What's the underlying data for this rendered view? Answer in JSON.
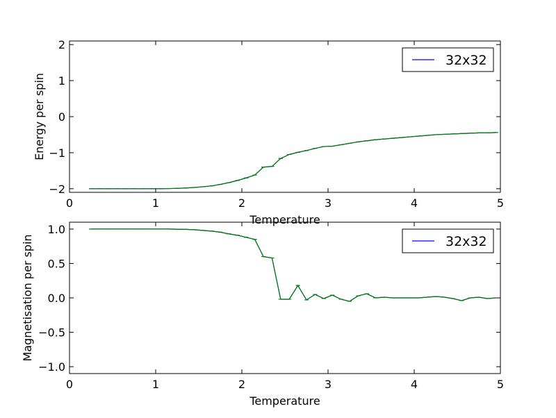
{
  "chart_data": [
    {
      "type": "line",
      "xlabel": "Temperature",
      "ylabel": "Energy per spin",
      "xlim": [
        0,
        5
      ],
      "ylim": [
        -2.1,
        2.1
      ],
      "xticks": [
        "0",
        "1",
        "2",
        "3",
        "4",
        "5"
      ],
      "xtick_values": [
        0,
        1,
        2,
        3,
        4,
        5
      ],
      "yticks": [
        "−2",
        "−1",
        "0",
        "1",
        "2"
      ],
      "ytick_values": [
        -2,
        -1,
        0,
        1,
        2
      ],
      "legend": {
        "position": "top-right",
        "entries": [
          {
            "label": "32x32",
            "color": "#0000ff"
          }
        ]
      },
      "series": [
        {
          "name": "32x32",
          "color": "#0000ff",
          "x": [
            0.25,
            0.35,
            0.45,
            0.55,
            0.65,
            0.75,
            0.85,
            0.95,
            1.05,
            1.15,
            1.25,
            1.35,
            1.45,
            1.55,
            1.65,
            1.75,
            1.85,
            1.95,
            2.05,
            2.15,
            2.25,
            2.35,
            2.45,
            2.55,
            2.65,
            2.75,
            2.85,
            2.95,
            3.05,
            3.15,
            3.25,
            3.35,
            3.45,
            3.55,
            3.65,
            3.75,
            3.85,
            3.95,
            4.05,
            4.15,
            4.25,
            4.35,
            4.45,
            4.55,
            4.65,
            4.75,
            4.85,
            4.95
          ],
          "y": [
            -2.0,
            -2.0,
            -2.0,
            -2.0,
            -2.0,
            -2.0,
            -2.0,
            -2.0,
            -2.0,
            -1.995,
            -1.99,
            -1.98,
            -1.965,
            -1.945,
            -1.92,
            -1.88,
            -1.83,
            -1.77,
            -1.7,
            -1.62,
            -1.4,
            -1.38,
            -1.16,
            -1.05,
            -0.99,
            -0.94,
            -0.88,
            -0.83,
            -0.82,
            -0.78,
            -0.74,
            -0.7,
            -0.67,
            -0.64,
            -0.62,
            -0.6,
            -0.58,
            -0.56,
            -0.54,
            -0.52,
            -0.5,
            -0.49,
            -0.48,
            -0.47,
            -0.46,
            -0.45,
            -0.45,
            -0.44
          ]
        },
        {
          "color": "#007f00",
          "x": [
            0.25,
            0.35,
            0.45,
            0.55,
            0.65,
            0.75,
            0.85,
            0.95,
            1.05,
            1.15,
            1.25,
            1.35,
            1.45,
            1.55,
            1.65,
            1.75,
            1.85,
            1.95,
            2.05,
            2.15,
            2.25,
            2.35,
            2.45,
            2.55,
            2.65,
            2.75,
            2.85,
            2.95,
            3.05,
            3.15,
            3.25,
            3.35,
            3.45,
            3.55,
            3.65,
            3.75,
            3.85,
            3.95,
            4.05,
            4.15,
            4.25,
            4.35,
            4.45,
            4.55,
            4.65,
            4.75,
            4.85,
            4.95
          ],
          "y": [
            -2.0,
            -2.0,
            -2.0,
            -2.0,
            -2.0,
            -2.0,
            -2.0,
            -2.0,
            -2.0,
            -1.995,
            -1.99,
            -1.98,
            -1.965,
            -1.945,
            -1.92,
            -1.88,
            -1.83,
            -1.77,
            -1.7,
            -1.62,
            -1.4,
            -1.38,
            -1.16,
            -1.05,
            -0.99,
            -0.94,
            -0.88,
            -0.83,
            -0.82,
            -0.78,
            -0.74,
            -0.7,
            -0.67,
            -0.64,
            -0.62,
            -0.6,
            -0.58,
            -0.56,
            -0.54,
            -0.52,
            -0.5,
            -0.49,
            -0.48,
            -0.47,
            -0.46,
            -0.45,
            -0.45,
            -0.44
          ]
        }
      ]
    },
    {
      "type": "line",
      "xlabel": "Temperature",
      "ylabel": "Magnetisation per spin",
      "xlim": [
        0,
        5
      ],
      "ylim": [
        -1.1,
        1.1
      ],
      "xticks": [
        "0",
        "1",
        "2",
        "3",
        "4",
        "5"
      ],
      "xtick_values": [
        0,
        1,
        2,
        3,
        4,
        5
      ],
      "yticks": [
        "−1.0",
        "−0.5",
        "0.0",
        "0.5",
        "1.0"
      ],
      "ytick_values": [
        -1.0,
        -0.5,
        0.0,
        0.5,
        1.0
      ],
      "legend": {
        "position": "top-right",
        "entries": [
          {
            "label": "32x32",
            "color": "#0000ff"
          }
        ]
      },
      "series": [
        {
          "name": "32x32",
          "color": "#0000ff",
          "x": [
            0.25,
            0.35,
            0.45,
            0.55,
            0.65,
            0.75,
            0.85,
            0.95,
            1.05,
            1.15,
            1.25,
            1.35,
            1.45,
            1.55,
            1.65,
            1.75,
            1.85,
            1.95,
            2.05,
            2.15,
            2.25,
            2.35,
            2.45,
            2.55,
            2.65,
            2.75,
            2.85,
            2.95,
            3.05,
            3.15,
            3.25,
            3.35,
            3.45,
            3.55,
            3.65,
            3.75,
            3.85,
            3.95,
            4.05,
            4.15,
            4.25,
            4.35,
            4.45,
            4.55,
            4.65,
            4.75,
            4.85,
            4.95
          ],
          "y": [
            1.0,
            1.0,
            1.0,
            1.0,
            1.0,
            1.0,
            1.0,
            1.0,
            1.0,
            1.0,
            0.998,
            0.995,
            0.99,
            0.98,
            0.97,
            0.955,
            0.93,
            0.91,
            0.88,
            0.85,
            0.6,
            0.58,
            -0.02,
            -0.02,
            0.18,
            -0.03,
            0.05,
            -0.01,
            0.04,
            -0.02,
            -0.05,
            0.03,
            0.06,
            0.0,
            0.01,
            0.0,
            0.0,
            0.0,
            0.0,
            0.01,
            0.02,
            0.01,
            -0.01,
            -0.04,
            0.0,
            0.01,
            -0.01,
            0.0
          ]
        },
        {
          "color": "#007f00",
          "x": [
            0.25,
            0.35,
            0.45,
            0.55,
            0.65,
            0.75,
            0.85,
            0.95,
            1.05,
            1.15,
            1.25,
            1.35,
            1.45,
            1.55,
            1.65,
            1.75,
            1.85,
            1.95,
            2.05,
            2.15,
            2.25,
            2.35,
            2.45,
            2.55,
            2.65,
            2.75,
            2.85,
            2.95,
            3.05,
            3.15,
            3.25,
            3.35,
            3.45,
            3.55,
            3.65,
            3.75,
            3.85,
            3.95,
            4.05,
            4.15,
            4.25,
            4.35,
            4.45,
            4.55,
            4.65,
            4.75,
            4.85,
            4.95
          ],
          "y": [
            1.0,
            1.0,
            1.0,
            1.0,
            1.0,
            1.0,
            1.0,
            1.0,
            1.0,
            1.0,
            0.998,
            0.995,
            0.99,
            0.98,
            0.97,
            0.955,
            0.93,
            0.91,
            0.88,
            0.85,
            0.6,
            0.58,
            -0.02,
            -0.02,
            0.18,
            -0.03,
            0.05,
            -0.01,
            0.04,
            -0.02,
            -0.05,
            0.03,
            0.06,
            0.0,
            0.01,
            0.0,
            0.0,
            0.0,
            0.0,
            0.01,
            0.02,
            0.01,
            -0.01,
            -0.04,
            0.0,
            0.01,
            -0.01,
            0.0
          ]
        }
      ]
    }
  ]
}
